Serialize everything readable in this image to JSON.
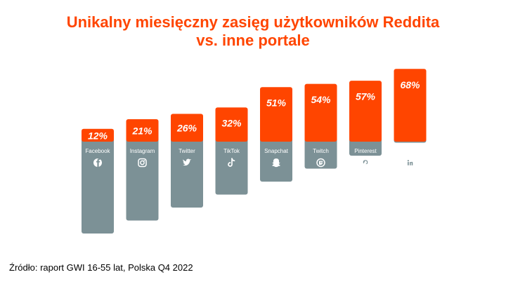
{
  "title_line1": "Unikalny miesięczny zasięg użytkowników Reddita",
  "title_line2": "vs. inne portale",
  "source": "Źródło: raport GWI 16-55 lat, Polska Q4 2022",
  "colors": {
    "accent": "#ff4500",
    "platform": "#7c9196",
    "text": "#ffffff"
  },
  "chart_data": {
    "type": "bar",
    "title": "Unikalny miesięczny zasięg użytkowników Reddita vs. inne portale",
    "categories": [
      "Facebook",
      "Instagram",
      "Twitter",
      "TikTok",
      "Snapchat",
      "Twitch",
      "Pinterest",
      "LinkedIn"
    ],
    "icons": [
      "facebook-icon",
      "instagram-icon",
      "twitter-icon",
      "tiktok-icon",
      "snapchat-icon",
      "twitch-icon",
      "pinterest-icon",
      "linkedin-icon"
    ],
    "values": [
      12,
      21,
      26,
      32,
      51,
      54,
      57,
      68
    ],
    "labels": [
      "12%",
      "21%",
      "26%",
      "32%",
      "51%",
      "54%",
      "57%",
      "68%"
    ],
    "ylim": [
      0,
      100
    ],
    "xlabel": "",
    "ylabel": ""
  }
}
